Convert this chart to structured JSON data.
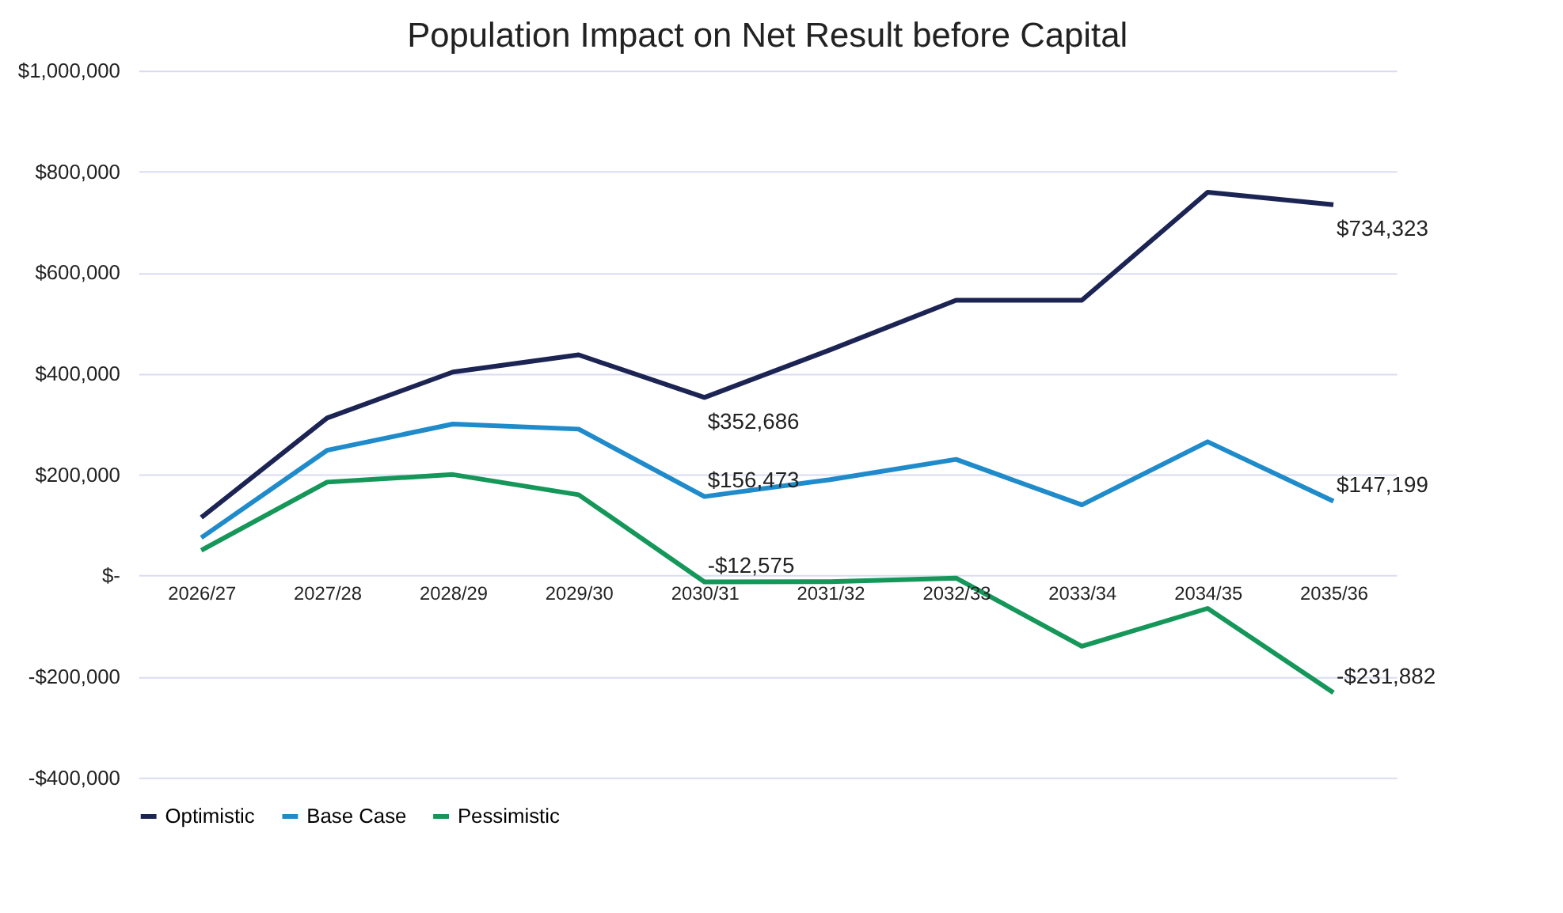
{
  "chart_data": {
    "type": "line",
    "title": "Population Impact on Net Result before Capital",
    "categories": [
      "2026/27",
      "2027/28",
      "2028/29",
      "2029/30",
      "2030/31",
      "2031/32",
      "2032/33",
      "2033/34",
      "2034/35",
      "2035/36"
    ],
    "series": [
      {
        "name": "Optimistic",
        "color": "#1c2454",
        "values": [
          115000,
          312000,
          403000,
          437000,
          352686,
          447000,
          545000,
          545000,
          759000,
          734323
        ],
        "value_labels": [
          null,
          null,
          null,
          null,
          "$352,686",
          null,
          null,
          null,
          null,
          "$734,323"
        ]
      },
      {
        "name": "Base Case",
        "color": "#1f8bcb",
        "values": [
          75000,
          248000,
          300000,
          290000,
          156473,
          190000,
          230000,
          140000,
          265000,
          147199
        ],
        "value_labels": [
          null,
          null,
          null,
          null,
          "$156,473",
          null,
          null,
          null,
          null,
          "$147,199"
        ]
      },
      {
        "name": "Pessimistic",
        "color": "#15975a",
        "values": [
          50000,
          185000,
          200000,
          160000,
          -12575,
          -12000,
          -5000,
          -140000,
          -65000,
          -231882
        ],
        "value_labels": [
          null,
          null,
          null,
          null,
          "-$12,575",
          null,
          null,
          null,
          null,
          "-$231,882"
        ]
      }
    ],
    "ylim": [
      -400000,
      1000000
    ],
    "yticks": [
      {
        "value": -400000,
        "label": "-$400,000"
      },
      {
        "value": -200000,
        "label": "-$200,000"
      },
      {
        "value": 0,
        "label": "$-"
      },
      {
        "value": 200000,
        "label": "$200,000"
      },
      {
        "value": 400000,
        "label": "$400,000"
      },
      {
        "value": 600000,
        "label": "$600,000"
      },
      {
        "value": 800000,
        "label": "$800,000"
      },
      {
        "value": 1000000,
        "label": "$1,000,000"
      }
    ],
    "grid": "y",
    "legend": "bottom",
    "marker": "none",
    "line_style": "solid"
  }
}
